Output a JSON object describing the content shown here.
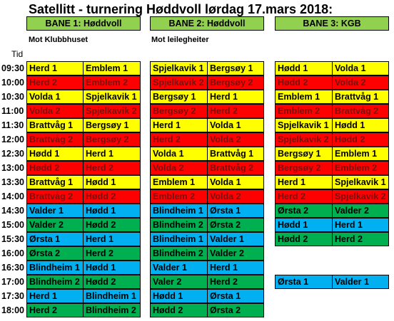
{
  "title": "Satellitt - turnering Høddvoll lørdag 17.mars 2018:",
  "courts": [
    {
      "label": "BANE 1: Høddvoll",
      "subtitle": "Mot Klubbhuset"
    },
    {
      "label": "BANE 2: Høddvoll",
      "subtitle": "Mot leilegheiter"
    },
    {
      "label": "BANE 3: KGB",
      "subtitle": ""
    }
  ],
  "time_header": "Tid",
  "colors": {
    "yellow": "#ffff00",
    "red": "#ff0000",
    "blue": "#00b0f0",
    "green": "#00b050",
    "header_green": "#92d050"
  },
  "rows": [
    {
      "time": "09:30",
      "matches": [
        {
          "home": "Herd 1",
          "away": "Emblem 1",
          "color": "yellow"
        },
        {
          "home": "Spjelkavik 1",
          "away": "Bergsøy 1",
          "color": "yellow"
        },
        {
          "home": "Hødd 1",
          "away": "Volda 1",
          "color": "yellow"
        }
      ]
    },
    {
      "time": "10:00",
      "matches": [
        {
          "home": "Herd 2",
          "away": "Emblem 2",
          "color": "red"
        },
        {
          "home": "Spjelkavik 2",
          "away": "Bergsøy 2",
          "color": "red"
        },
        {
          "home": "Hødd 2",
          "away": "Volda 2",
          "color": "red"
        }
      ]
    },
    {
      "time": "10:30",
      "matches": [
        {
          "home": "Volda 1",
          "away": "Spjelkavik 1",
          "color": "yellow"
        },
        {
          "home": "Bergsøy 1",
          "away": "Herd 1",
          "color": "yellow"
        },
        {
          "home": "Emblem 1",
          "away": "Brattvåg 1",
          "color": "yellow"
        }
      ]
    },
    {
      "time": "11:00",
      "matches": [
        {
          "home": "Volda 2",
          "away": "Spjelkavik 2",
          "color": "red"
        },
        {
          "home": "Bergsøy 2",
          "away": "Herd 2",
          "color": "red"
        },
        {
          "home": "Emblem 2",
          "away": "Brattvåg 2",
          "color": "red"
        }
      ]
    },
    {
      "time": "11:30",
      "matches": [
        {
          "home": "Brattvåg 1",
          "away": "Bergsøy 1",
          "color": "yellow"
        },
        {
          "home": "Herd 1",
          "away": "Volda 1",
          "color": "yellow"
        },
        {
          "home": "Spjelkavik 1",
          "away": "Hødd 1",
          "color": "yellow"
        }
      ]
    },
    {
      "time": "12:00",
      "matches": [
        {
          "home": "Brattvåg 2",
          "away": "Bergsøy 2",
          "color": "red"
        },
        {
          "home": "Herd 2",
          "away": "Volda 2",
          "color": "red"
        },
        {
          "home": "Spjelkavik 2",
          "away": "Hødd 2",
          "color": "red"
        }
      ]
    },
    {
      "time": "12:30",
      "matches": [
        {
          "home": "Hødd 1",
          "away": "Herd 1",
          "color": "yellow"
        },
        {
          "home": "Volda 1",
          "away": "Brattvåg 1",
          "color": "yellow"
        },
        {
          "home": "Bergsøy 1",
          "away": "Emblem 1",
          "color": "yellow"
        }
      ]
    },
    {
      "time": "13:00",
      "matches": [
        {
          "home": "Hødd 2",
          "away": "Herd 2",
          "color": "red"
        },
        {
          "home": "Volda 2",
          "away": "Brattvåg 2",
          "color": "red"
        },
        {
          "home": "Bergsøy 2",
          "away": "Emblem 2",
          "color": "red"
        }
      ]
    },
    {
      "time": "13:30",
      "matches": [
        {
          "home": "Brattvåg 1",
          "away": "Hødd 1",
          "color": "yellow"
        },
        {
          "home": "Emblem 1",
          "away": "Volda 1",
          "color": "yellow"
        },
        {
          "home": "Herd 1",
          "away": "Spjelkavik 1",
          "color": "yellow"
        }
      ]
    },
    {
      "time": "14:00",
      "matches": [
        {
          "home": "Brattvåg 2",
          "away": "Hødd 2",
          "color": "red"
        },
        {
          "home": "Emblem 2",
          "away": "Volda 2",
          "color": "red"
        },
        {
          "home": "Herd 2",
          "away": "Spjelkavik 2",
          "color": "red"
        }
      ]
    },
    {
      "time": "14:30",
      "matches": [
        {
          "home": "Valder 1",
          "away": "Hødd 1",
          "color": "blue"
        },
        {
          "home": "Blindheim 1",
          "away": "Ørsta 1",
          "color": "blue"
        },
        {
          "home": "Ørsta 2",
          "away": "Valder 2",
          "color": "green"
        }
      ]
    },
    {
      "time": "15:00",
      "matches": [
        {
          "home": "Valder 2",
          "away": "Hødd 2",
          "color": "green"
        },
        {
          "home": "Blindheim 2",
          "away": "Ørsta 2",
          "color": "green"
        },
        {
          "home": "Hødd 1",
          "away": "Herd 1",
          "color": "blue"
        }
      ]
    },
    {
      "time": "15:30",
      "matches": [
        {
          "home": "Ørsta 1",
          "away": "Herd 1",
          "color": "blue"
        },
        {
          "home": "Blindheim 1",
          "away": "Valder 1",
          "color": "blue"
        },
        {
          "home": "Hødd 2",
          "away": "Herd 2",
          "color": "green"
        }
      ]
    },
    {
      "time": "16:00",
      "matches": [
        {
          "home": "Ørsta 2",
          "away": "Herd 2",
          "color": "green"
        },
        {
          "home": "Blindheim 2",
          "away": "Valder 2",
          "color": "green"
        },
        null
      ]
    },
    {
      "time": "16:30",
      "matches": [
        {
          "home": "Blindheim 1",
          "away": "Hødd 1",
          "color": "blue"
        },
        {
          "home": "Valder 1",
          "away": "Herd 1",
          "color": "blue"
        },
        null
      ]
    },
    {
      "time": "17:00",
      "matches": [
        {
          "home": "Blindheim 2",
          "away": "Hødd 2",
          "color": "green"
        },
        {
          "home": "Valer 2",
          "away": "Herd 2",
          "color": "green"
        },
        {
          "home": "Ørsta 1",
          "away": "Valder 1",
          "color": "blue"
        }
      ]
    },
    {
      "time": "17:30",
      "matches": [
        {
          "home": "Herd 1",
          "away": "Blindheim 1",
          "color": "blue"
        },
        {
          "home": "Hødd 1",
          "away": "Ørsta 1",
          "color": "blue"
        },
        null
      ]
    },
    {
      "time": "18:00",
      "matches": [
        {
          "home": "Herd 2",
          "away": "Blindheim 2",
          "color": "green"
        },
        {
          "home": "Hødd 2",
          "away": "Ørsta 2",
          "color": "green"
        },
        null
      ]
    }
  ]
}
